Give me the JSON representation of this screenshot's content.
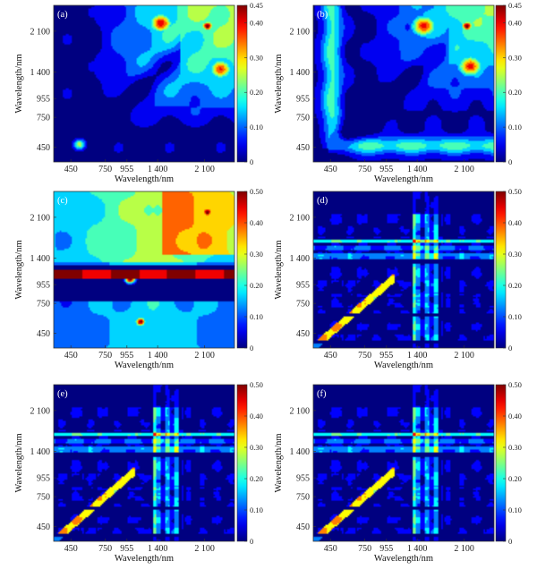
{
  "figure": {
    "panel_count": 6
  },
  "chart_data": [
    {
      "type": "heatmap",
      "panel": "(a)",
      "xlabel": "Wavelength/nm",
      "ylabel": "Wavelength/nm",
      "x_ticks": [
        "450",
        "750",
        "955",
        "1 400",
        "2 100"
      ],
      "y_ticks": [
        "2 100",
        "1 400",
        "955",
        "750",
        "450"
      ],
      "colorbar": {
        "min": 0,
        "max": 0.45,
        "ticks": [
          "0",
          "0.10",
          "0.20",
          "0.30",
          "0.40",
          "0.45"
        ]
      },
      "pattern": "smooth",
      "features": [
        {
          "x": 2150,
          "y": 2200,
          "value": 0.45,
          "radius": 90
        },
        {
          "x": 1450,
          "y": 2250,
          "value": 0.4,
          "radius": 180
        },
        {
          "x": 2350,
          "y": 1450,
          "value": 0.37,
          "radius": 180
        },
        {
          "x": 520,
          "y": 470,
          "value": 0.25,
          "radius": 60
        }
      ]
    },
    {
      "type": "heatmap",
      "panel": "(b)",
      "xlabel": "Wavelength/nm",
      "ylabel": "Wavelength/nm",
      "x_ticks": [
        "450",
        "750",
        "955",
        "1 400",
        "2 100"
      ],
      "y_ticks": [
        "2 100",
        "1 400",
        "955",
        "750",
        "450"
      ],
      "colorbar": {
        "min": 0,
        "max": 0.45,
        "ticks": [
          "0",
          "0.10",
          "0.20",
          "0.30",
          "0.40",
          "0.45"
        ]
      },
      "pattern": "smooth-L",
      "features": [
        {
          "x": 2150,
          "y": 2200,
          "value": 0.45,
          "radius": 90
        },
        {
          "x": 1500,
          "y": 2200,
          "value": 0.38,
          "radius": 200
        },
        {
          "x": 2200,
          "y": 1500,
          "value": 0.38,
          "radius": 200
        }
      ]
    },
    {
      "type": "heatmap",
      "panel": "(c)",
      "xlabel": "Wavelength/nm",
      "ylabel": "Wavelength/nm",
      "x_ticks": [
        "450",
        "750",
        "955",
        "1 400",
        "2 100"
      ],
      "y_ticks": [
        "2 100",
        "1 400",
        "955",
        "750",
        "450"
      ],
      "colorbar": {
        "min": 0,
        "max": 0.5,
        "ticks": [
          "0",
          "0.10",
          "0.20",
          "0.30",
          "0.40",
          "0.50"
        ]
      },
      "pattern": "banded",
      "features": [
        {
          "x": 2150,
          "y": 2200,
          "value": 0.45,
          "radius": 90
        },
        {
          "x": 1000,
          "y": 1050,
          "value": 0.48,
          "radius": 60
        },
        {
          "x": 1150,
          "y": 560,
          "value": 0.45,
          "radius": 60
        }
      ]
    },
    {
      "type": "heatmap",
      "panel": "(d)",
      "xlabel": "Wavelength/nm",
      "ylabel": "Wavelength/nm",
      "x_ticks": [
        "450",
        "750",
        "955",
        "1 400",
        "2 100"
      ],
      "y_ticks": [
        "2 100",
        "1 400",
        "955",
        "750",
        "450"
      ],
      "colorbar": {
        "min": 0,
        "max": 0.5,
        "ticks": [
          "0",
          "0.10",
          "0.20",
          "0.30",
          "0.40",
          "0.50"
        ]
      },
      "pattern": "striped"
    },
    {
      "type": "heatmap",
      "panel": "(e)",
      "xlabel": "Wavelength/nm",
      "ylabel": "Wavelength/nm",
      "x_ticks": [
        "450",
        "750",
        "955",
        "1 400",
        "2 100"
      ],
      "y_ticks": [
        "2 100",
        "1 400",
        "955",
        "750",
        "450"
      ],
      "colorbar": {
        "min": 0,
        "max": 0.5,
        "ticks": [
          "0",
          "0.10",
          "0.20",
          "0.30",
          "0.40",
          "0.50"
        ]
      },
      "pattern": "striped"
    },
    {
      "type": "heatmap",
      "panel": "(f)",
      "xlabel": "Wavelength/nm",
      "ylabel": "Wavelength/nm",
      "x_ticks": [
        "450",
        "750",
        "955",
        "1 400",
        "2 100"
      ],
      "y_ticks": [
        "2 100",
        "1 400",
        "955",
        "750",
        "450"
      ],
      "colorbar": {
        "min": 0,
        "max": 0.5,
        "ticks": [
          "0",
          "0.10",
          "0.20",
          "0.30",
          "0.40",
          "0.50"
        ]
      },
      "pattern": "striped"
    }
  ]
}
